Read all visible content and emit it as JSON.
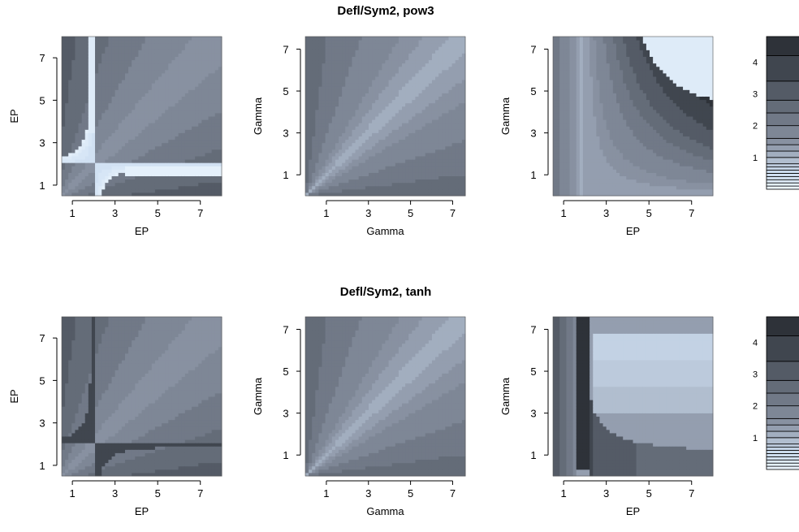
{
  "figure": {
    "type": "heatmap-grid",
    "rows": 2,
    "cols": 3
  },
  "chart_data": [
    {
      "type": "heatmap",
      "panel": "row1-col1",
      "row_title": "Defl/Sym2, pow3",
      "xlabel": "EP",
      "ylabel": "EP",
      "xlim": [
        0.5,
        8
      ],
      "ylim": [
        0.5,
        8
      ],
      "xticks": [
        1,
        3,
        5,
        7
      ],
      "yticks": [
        1,
        3,
        5,
        7
      ],
      "pattern": "ep-ep-pow3"
    },
    {
      "type": "heatmap",
      "panel": "row1-col2",
      "xlabel": "Gamma",
      "ylabel": "Gamma",
      "xlim": [
        0,
        7.6
      ],
      "ylim": [
        0,
        7.6
      ],
      "xticks": [
        1,
        3,
        5,
        7
      ],
      "yticks": [
        1,
        3,
        5,
        7
      ],
      "pattern": "gamma-gamma"
    },
    {
      "type": "heatmap",
      "panel": "row1-col3",
      "xlabel": "EP",
      "ylabel": "Gamma",
      "xlim": [
        0.5,
        8
      ],
      "ylim": [
        0,
        7.6
      ],
      "xticks": [
        1,
        3,
        5,
        7
      ],
      "yticks": [
        1,
        3,
        5,
        7
      ],
      "pattern": "ep-gamma-pow3"
    },
    {
      "type": "heatmap",
      "panel": "row2-col1",
      "row_title": "Defl/Sym2, tanh",
      "xlabel": "EP",
      "ylabel": "EP",
      "xlim": [
        0.5,
        8
      ],
      "ylim": [
        0.5,
        8
      ],
      "xticks": [
        1,
        3,
        5,
        7
      ],
      "yticks": [
        1,
        3,
        5,
        7
      ],
      "pattern": "ep-ep-tanh"
    },
    {
      "type": "heatmap",
      "panel": "row2-col2",
      "xlabel": "Gamma",
      "ylabel": "Gamma",
      "xlim": [
        0,
        7.6
      ],
      "ylim": [
        0,
        7.6
      ],
      "xticks": [
        1,
        3,
        5,
        7
      ],
      "yticks": [
        1,
        3,
        5,
        7
      ],
      "pattern": "gamma-gamma"
    },
    {
      "type": "heatmap",
      "panel": "row2-col3",
      "xlabel": "EP",
      "ylabel": "Gamma",
      "xlim": [
        0.5,
        8
      ],
      "ylim": [
        0,
        7.6
      ],
      "xticks": [
        1,
        3,
        5,
        7
      ],
      "yticks": [
        1,
        3,
        5,
        7
      ],
      "pattern": "ep-gamma-tanh"
    }
  ],
  "colorbars": [
    {
      "row": 1,
      "ticks": [
        1,
        2,
        3,
        4
      ],
      "levels": [
        0,
        0.1,
        0.2,
        0.3,
        0.4,
        0.5,
        0.6,
        0.7,
        0.8,
        1.0,
        1.2,
        1.4,
        1.6,
        2.0,
        2.4,
        2.8,
        3.4,
        4.2,
        4.8
      ],
      "range": [
        0,
        4.8
      ]
    },
    {
      "row": 2,
      "ticks": [
        1,
        2,
        3,
        4
      ],
      "levels": [
        0,
        0.1,
        0.2,
        0.3,
        0.4,
        0.5,
        0.6,
        0.7,
        0.8,
        1.0,
        1.2,
        1.4,
        1.6,
        2.0,
        2.4,
        2.8,
        3.4,
        4.2,
        4.8
      ],
      "range": [
        0,
        4.8
      ]
    }
  ],
  "colors": {
    "low": "#eef7ff",
    "mid_low": "#cfe0f2",
    "mid": "#8a93a3",
    "high": "#4b525c",
    "max": "#262a30"
  }
}
